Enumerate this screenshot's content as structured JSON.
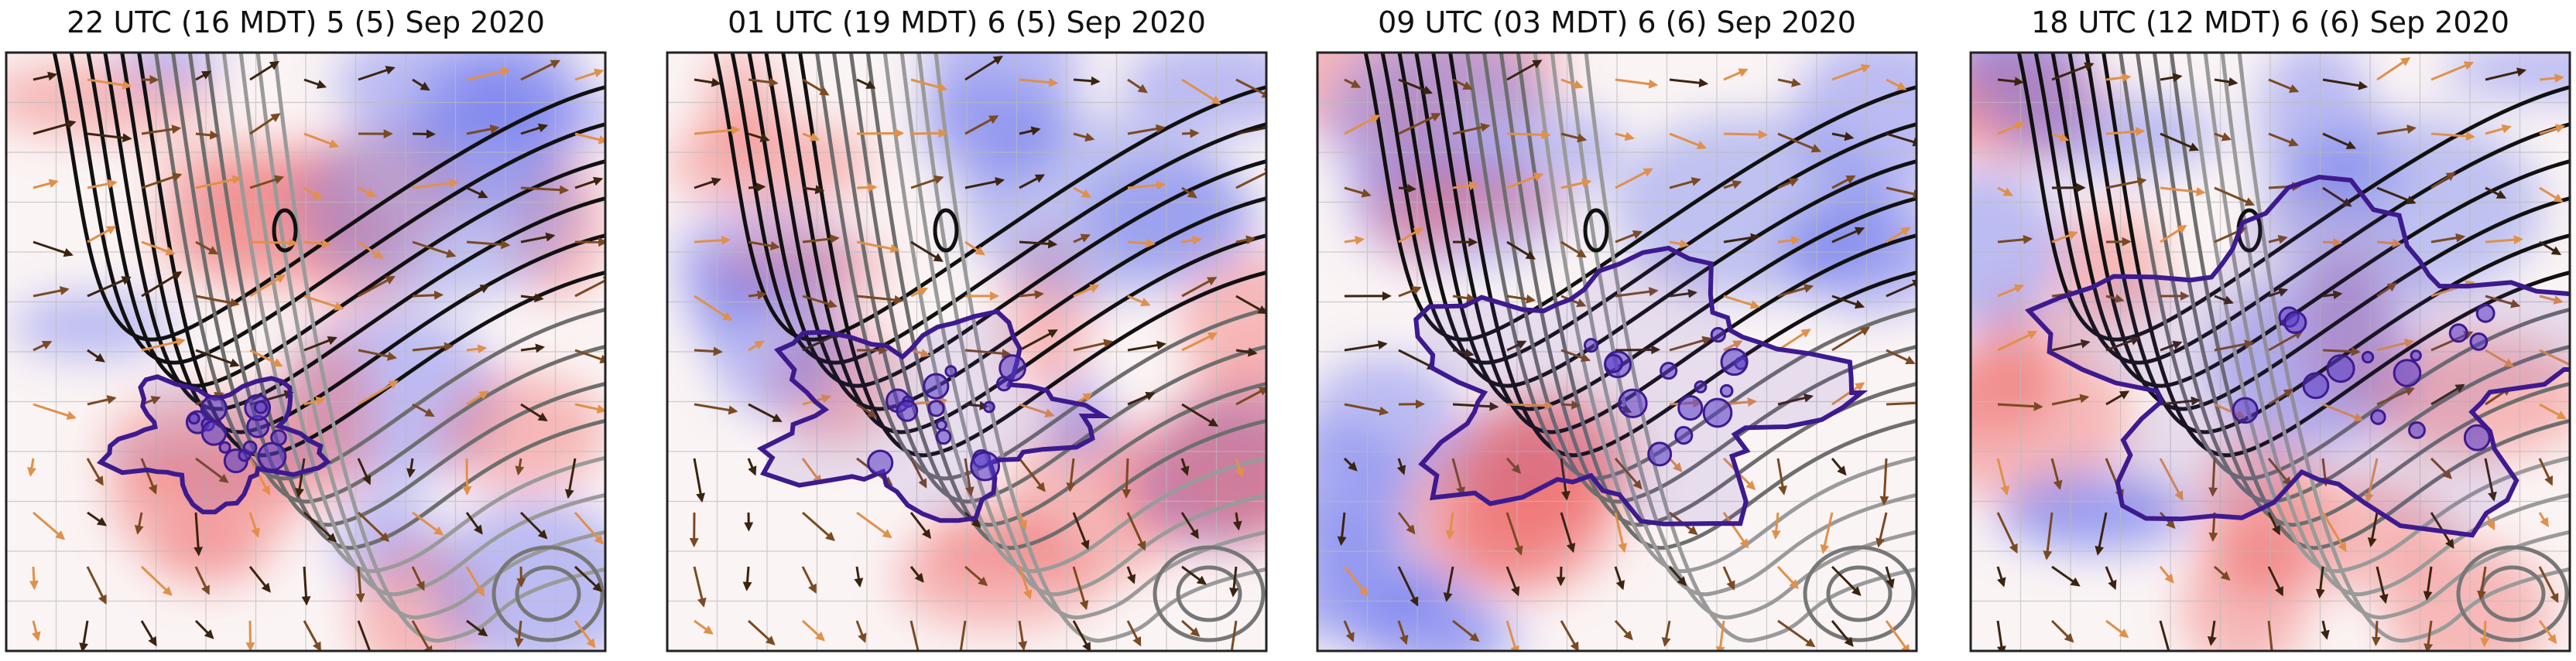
{
  "panels": [
    {
      "title": "22 UTC (16 MDT) 5 (5) Sep 2020"
    },
    {
      "title": "01 UTC (19 MDT) 6 (5) Sep 2020"
    },
    {
      "title": "09 UTC (03 MDT) 6 (6) Sep 2020"
    },
    {
      "title": "18 UTC (12 MDT) 6 (6) Sep 2020"
    }
  ]
}
